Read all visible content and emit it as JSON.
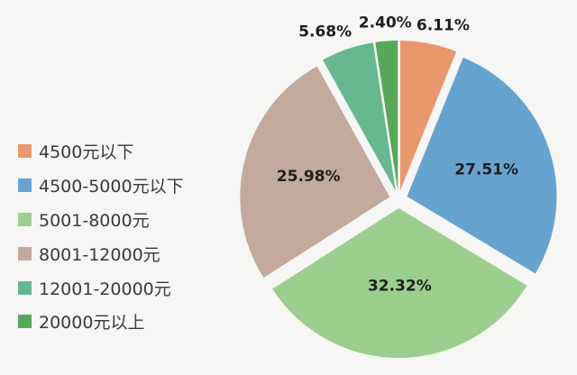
{
  "chart_data": {
    "type": "pie",
    "categories": [
      "4500元以下",
      "4500-5000元以下",
      "5001-8000元",
      "8001-12000元",
      "12001-20000元",
      "20000元以上"
    ],
    "values": [
      6.11,
      27.51,
      32.32,
      25.98,
      5.68,
      2.4
    ],
    "value_labels": [
      "6.11%",
      "27.51%",
      "32.32%",
      "25.98%",
      "5.68%",
      "2.40%"
    ],
    "colors": [
      "#e8986c",
      "#67a3cf",
      "#9ccf8e",
      "#c4aa9c",
      "#67b890",
      "#58a85a"
    ],
    "legend_position": "left",
    "title": "",
    "start_angle_deg": 0,
    "direction": "clockwise"
  }
}
